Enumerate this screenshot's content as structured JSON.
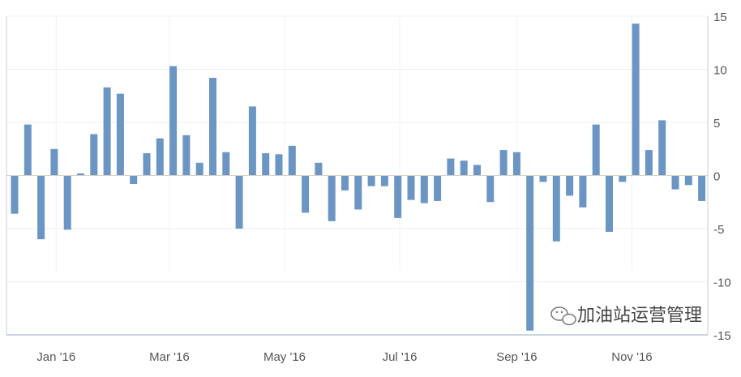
{
  "chart_data": {
    "type": "bar",
    "title": "",
    "xlabel": "",
    "ylabel": "",
    "ylim": [
      -15,
      15
    ],
    "yticks": [
      15,
      10,
      5,
      0,
      -5,
      -10,
      -15
    ],
    "y_axis_side": "right",
    "grid": true,
    "bar_color": "#6b96c3",
    "x_tick_labels": [
      {
        "date": "2016-01-01",
        "label": "Jan '16"
      },
      {
        "date": "2016-03-01",
        "label": "Mar '16"
      },
      {
        "date": "2016-05-01",
        "label": "May '16"
      },
      {
        "date": "2016-07-01",
        "label": "Jul '16"
      },
      {
        "date": "2016-09-01",
        "label": "Sep '16"
      },
      {
        "date": "2016-11-01",
        "label": "Nov '16"
      }
    ],
    "x": [
      "2015-12-10",
      "2015-12-17",
      "2015-12-24",
      "2015-12-31",
      "2016-01-07",
      "2016-01-14",
      "2016-01-21",
      "2016-01-28",
      "2016-02-04",
      "2016-02-11",
      "2016-02-18",
      "2016-02-25",
      "2016-03-03",
      "2016-03-10",
      "2016-03-17",
      "2016-03-24",
      "2016-03-31",
      "2016-04-07",
      "2016-04-14",
      "2016-04-21",
      "2016-04-28",
      "2016-05-05",
      "2016-05-12",
      "2016-05-19",
      "2016-05-26",
      "2016-06-02",
      "2016-06-09",
      "2016-06-16",
      "2016-06-23",
      "2016-06-30",
      "2016-07-07",
      "2016-07-14",
      "2016-07-21",
      "2016-07-28",
      "2016-08-04",
      "2016-08-11",
      "2016-08-18",
      "2016-08-25",
      "2016-09-01",
      "2016-09-08",
      "2016-09-15",
      "2016-09-22",
      "2016-09-29",
      "2016-10-06",
      "2016-10-13",
      "2016-10-20",
      "2016-10-27",
      "2016-11-03",
      "2016-11-10",
      "2016-11-17",
      "2016-11-24",
      "2016-12-01",
      "2016-12-08"
    ],
    "values": [
      -3.6,
      4.8,
      -6.0,
      2.5,
      -5.1,
      0.2,
      3.9,
      8.3,
      7.7,
      -0.8,
      2.1,
      3.5,
      10.3,
      3.8,
      1.2,
      9.2,
      2.2,
      -5.0,
      6.5,
      2.1,
      2.0,
      2.8,
      -3.5,
      1.2,
      -4.3,
      -1.4,
      -3.2,
      -1.0,
      -1.0,
      -4.0,
      -2.3,
      -2.6,
      -2.4,
      1.6,
      1.4,
      1.0,
      -2.5,
      2.4,
      2.2,
      -14.6,
      -0.6,
      -6.2,
      -1.9,
      -3.0,
      4.8,
      -5.3,
      -0.6,
      14.3,
      2.4,
      5.2,
      -1.3,
      -0.9,
      -2.4
    ]
  },
  "watermark": {
    "text": "加油站运营管理",
    "icon": "wechat-icon"
  }
}
